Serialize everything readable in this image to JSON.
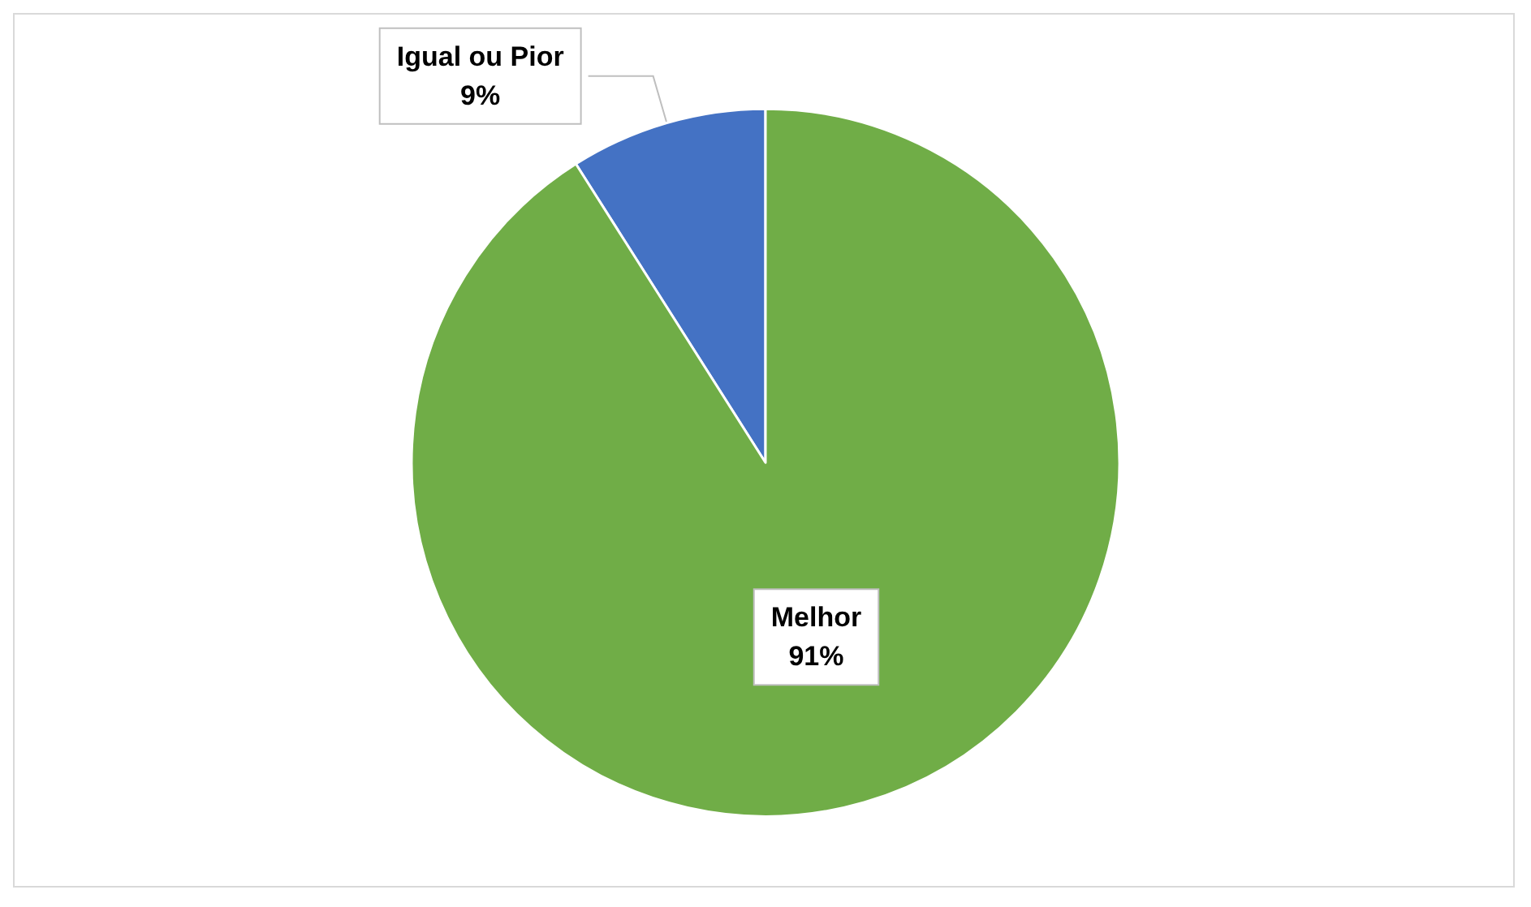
{
  "chart_data": {
    "type": "pie",
    "categories": [
      "Igual ou Pior",
      "Melhor"
    ],
    "values": [
      9,
      91
    ],
    "colors": [
      "#4472c4",
      "#70ad47"
    ],
    "value_labels": [
      "9%",
      "91%"
    ],
    "legend": false
  }
}
